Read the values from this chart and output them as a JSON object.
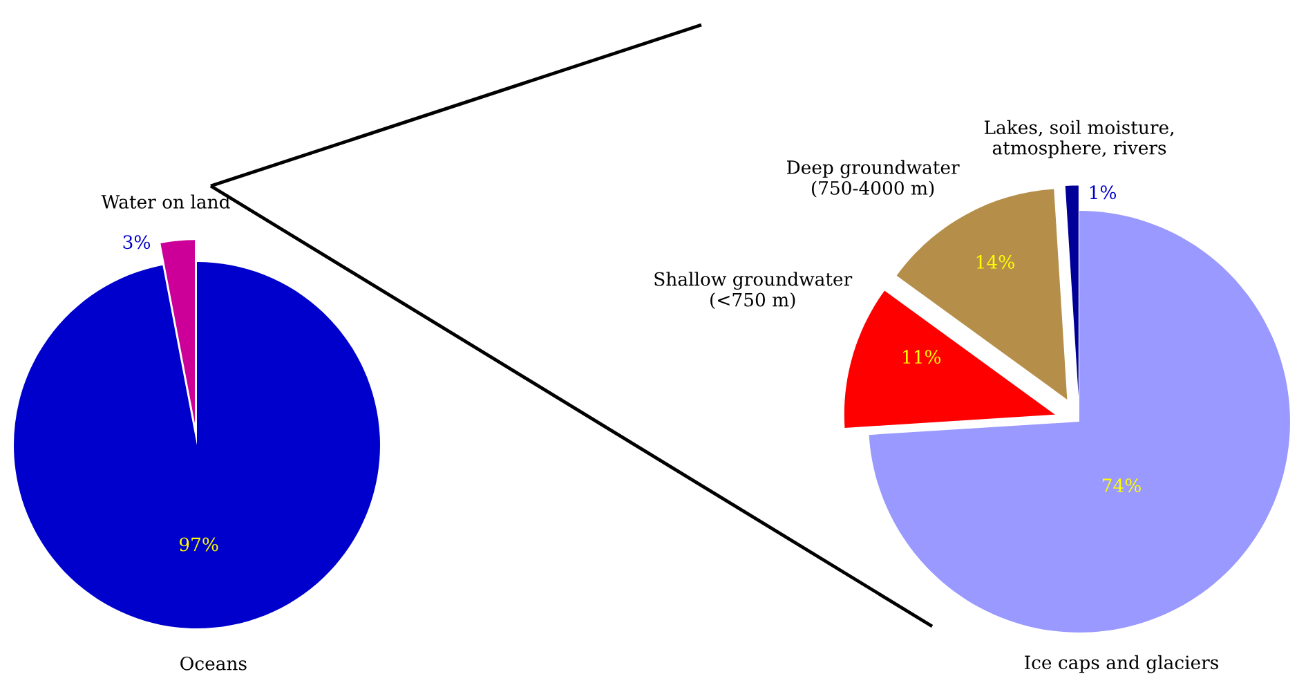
{
  "chart_data": [
    {
      "type": "pie",
      "categories": [
        "Oceans",
        "Water on land"
      ],
      "values": [
        97,
        3
      ],
      "colors": [
        "#0000cc",
        "#cc0099"
      ],
      "value_labels": [
        "97%",
        "3%"
      ]
    },
    {
      "type": "pie",
      "categories": [
        "Ice caps and glaciers",
        "Shallow groundwater\n(<750 m)",
        "Deep groundwater\n(750-4000 m)",
        "Lakes, soil moisture,\natmosphere, rivers"
      ],
      "values": [
        74,
        11,
        14,
        1
      ],
      "colors": [
        "#9999ff",
        "#ff0000",
        "#b58f4a",
        "#000099"
      ],
      "value_labels": [
        "74%",
        "11%",
        "14%",
        "1%"
      ]
    }
  ]
}
